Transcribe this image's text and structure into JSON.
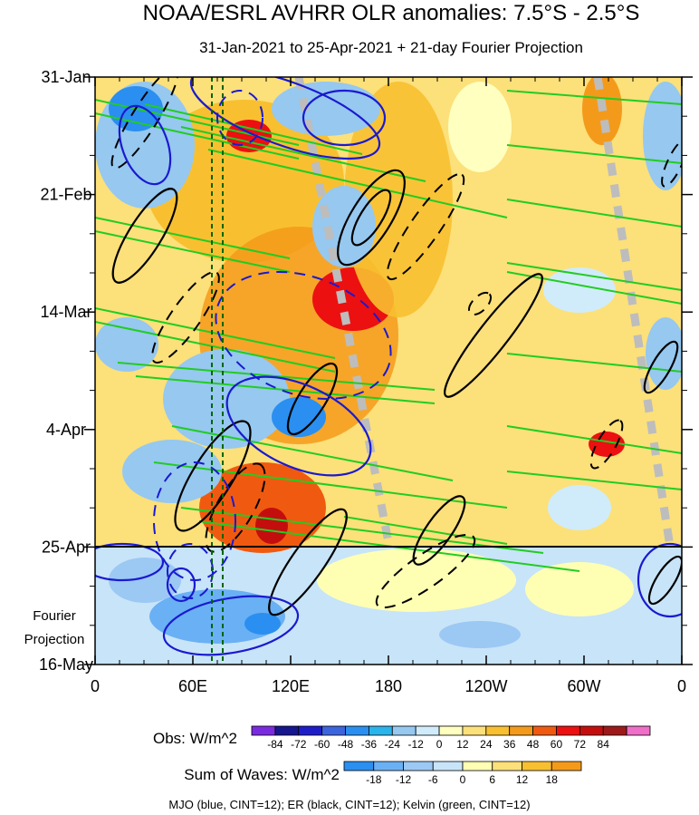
{
  "chart_data": {
    "type": "heatmap",
    "title": "NOAA/ESRL AVHRR OLR anomalies: 7.5°S - 2.5°S",
    "subtitle": "31-Jan-2021 to 25-Apr-2021 + 21-day Fourier Projection",
    "x_tick_labels": [
      "0",
      "60E",
      "120E",
      "180",
      "120W",
      "60W",
      "0"
    ],
    "x_ticks_deg": [
      0,
      60,
      120,
      180,
      240,
      300,
      360
    ],
    "x_range_deg": [
      0,
      360
    ],
    "y_tick_labels": [
      "31-Jan",
      "21-Feb",
      "14-Mar",
      "4-Apr",
      "25-Apr",
      "16-May"
    ],
    "y_ticks_days_from_start": [
      0,
      21,
      42,
      63,
      84,
      105
    ],
    "projection_label": [
      "Fourier",
      "Projection"
    ],
    "observation_end_label": "25-Apr",
    "obs_legend": {
      "label": "Obs: W/m^2",
      "levels": [
        "-84",
        "-72",
        "-60",
        "-48",
        "-36",
        "-24",
        "-12",
        "0",
        "12",
        "24",
        "36",
        "48",
        "60",
        "72",
        "84"
      ],
      "colors": [
        "#7a2be0",
        "#16168f",
        "#1e1ec8",
        "#3c64dc",
        "#2a8ff0",
        "#2ab4ec",
        "#96c8f0",
        "#d0ecfa",
        "#ffffc0",
        "#fce07a",
        "#f8c030",
        "#f49a1a",
        "#f05a10",
        "#ec1010",
        "#c40e0e",
        "#9e1a1a",
        "#ee6ec8"
      ]
    },
    "waves_legend": {
      "label": "Sum of Waves: W/m^2",
      "levels": [
        "-18",
        "-12",
        "-6",
        "0",
        "6",
        "12",
        "18"
      ],
      "colors": [
        "#2a8ff0",
        "#6ab0f4",
        "#9cc8f4",
        "#c8e4f8",
        "#ffffb4",
        "#fce07a",
        "#f8c030",
        "#f49a1a"
      ]
    },
    "contour_note": "MJO (blue, CINT=12); ER (black, CINT=12); Kelvin (green, CINT=12)",
    "series": [
      {
        "name": "MJO",
        "color": "#1a1ad0"
      },
      {
        "name": "ER",
        "color": "#000000"
      },
      {
        "name": "Kelvin",
        "color": "#22cc22"
      }
    ],
    "grid": false
  }
}
